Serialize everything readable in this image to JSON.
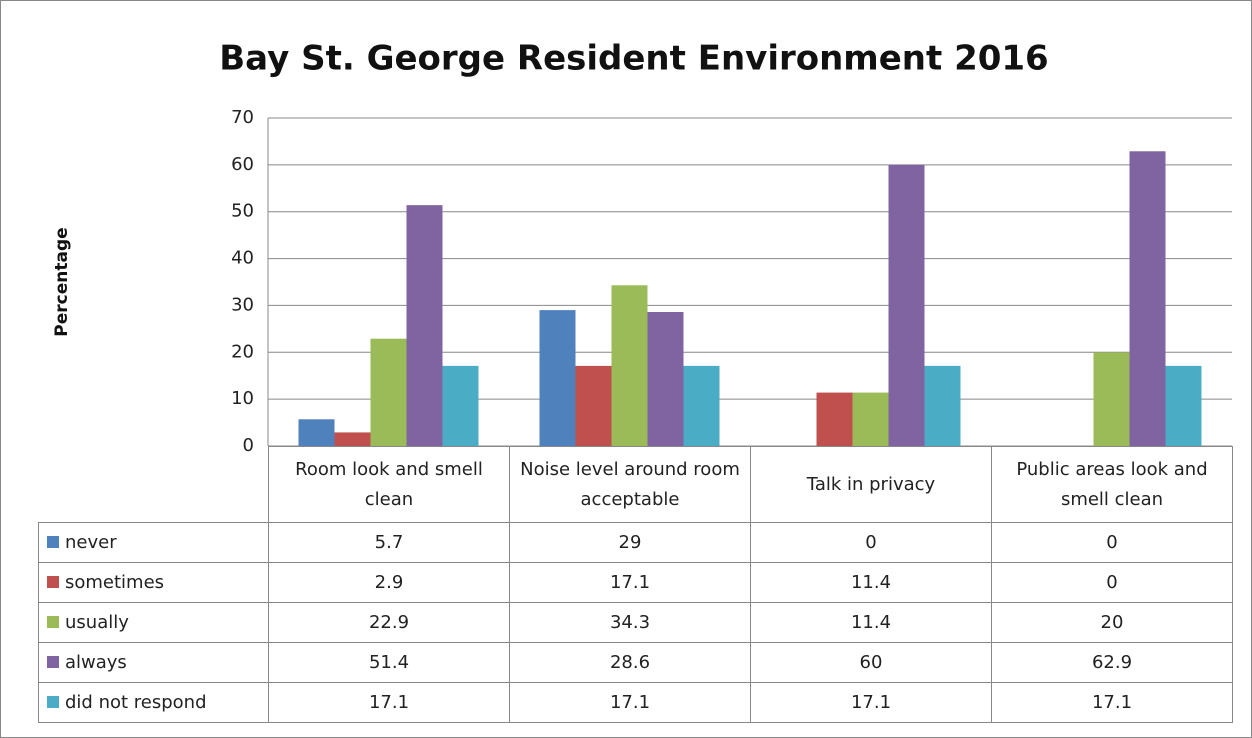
{
  "chart_data": {
    "type": "bar",
    "title": "Bay St. George Resident Environment 2016",
    "y_label": "Percentage",
    "categories": [
      "Room look and smell clean",
      "Noise level around room acceptable",
      "Talk in privacy",
      "Public areas look and smell clean"
    ],
    "series": [
      {
        "name": "never",
        "color": "#4f81bd",
        "values": [
          5.7,
          29,
          0,
          0
        ]
      },
      {
        "name": "sometimes",
        "color": "#c0504d",
        "values": [
          2.9,
          17.1,
          11.4,
          0
        ]
      },
      {
        "name": "usually",
        "color": "#9bbb59",
        "values": [
          22.9,
          34.3,
          11.4,
          20
        ]
      },
      {
        "name": "always",
        "color": "#8064a2",
        "values": [
          51.4,
          28.6,
          60,
          62.9
        ]
      },
      {
        "name": "did not respond",
        "color": "#4bacc6",
        "values": [
          17.1,
          17.1,
          17.1,
          17.1
        ]
      }
    ],
    "ylim": [
      0,
      70
    ],
    "yticks": [
      0,
      10,
      20,
      30,
      40,
      50,
      60,
      70
    ],
    "grid": true,
    "data_table": true
  }
}
